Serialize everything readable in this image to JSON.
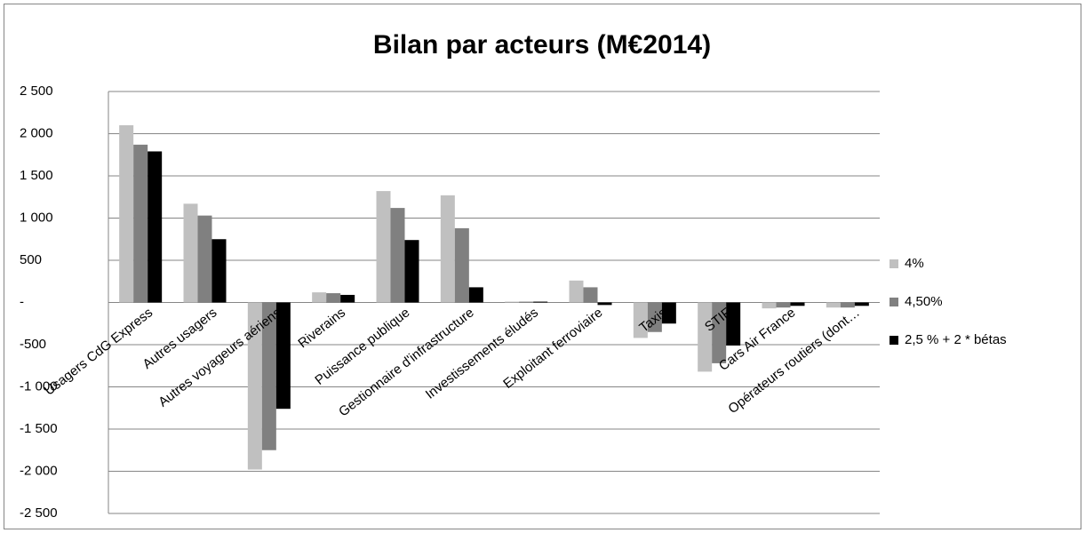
{
  "chart_data": {
    "type": "bar",
    "title": "Bilan par acteurs (M€2014)",
    "categories": [
      "Usagers CdG Express",
      "Autres usagers",
      "Autres voyageurs aériens",
      "Riverains",
      "Puissance publique",
      "Gestionnaire d'infrastructure",
      "Investissements éludés",
      "Exploitant ferroviaire",
      "Taxis",
      "STIF",
      "Cars Air France",
      "Opérateurs routiers (dont…"
    ],
    "series": [
      {
        "name": "4%",
        "color": "#c0c0c0",
        "values": [
          2100,
          1170,
          -1980,
          120,
          1320,
          1270,
          10,
          260,
          -420,
          -820,
          -70,
          -60
        ]
      },
      {
        "name": "4,50%",
        "color": "#808080",
        "values": [
          1870,
          1030,
          -1750,
          110,
          1120,
          880,
          10,
          180,
          -350,
          -720,
          -60,
          -60
        ]
      },
      {
        "name": "2,5 % + 2 * bétas",
        "color": "#000000",
        "values": [
          1790,
          750,
          -1260,
          90,
          740,
          180,
          10,
          -30,
          -250,
          -510,
          -40,
          -40
        ]
      }
    ],
    "ylim": [
      -2500,
      2500
    ],
    "yticks": [
      {
        "value": -2500,
        "label": "-2 500"
      },
      {
        "value": -2000,
        "label": "-2 000"
      },
      {
        "value": -1500,
        "label": "-1 500"
      },
      {
        "value": -1000,
        "label": "-1 000"
      },
      -500,
      {
        "value": 0,
        "label": "-"
      },
      500,
      {
        "value": 1000,
        "label": "1 000"
      },
      {
        "value": 1500,
        "label": "1 500"
      },
      {
        "value": 2000,
        "label": "2 000"
      },
      {
        "value": 2500,
        "label": "2 500"
      }
    ],
    "grid": true,
    "legend": "right"
  }
}
